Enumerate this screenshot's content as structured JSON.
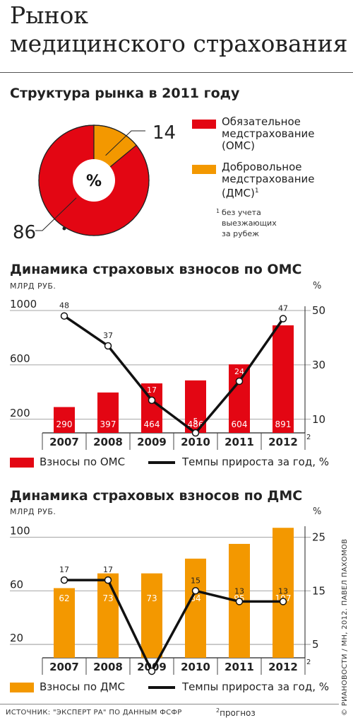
{
  "header": {
    "title_line1": "Рынок",
    "title_line2": "медицинского страхования"
  },
  "colors": {
    "red": "#e30613",
    "orange": "#f39800",
    "line": "#111111",
    "grid": "#888888"
  },
  "structure": {
    "title": "Структура рынка в 2011 году",
    "center_label": "%",
    "legend": [
      {
        "lines": [
          "Обязательное",
          "медстрахование",
          "(ОМС)"
        ]
      },
      {
        "lines": [
          "Добровольное",
          "медстрахование",
          "(ДМС)"
        ],
        "footnote_mark": "1"
      }
    ],
    "footnote": {
      "mark": "1",
      "lines": [
        "без учета",
        "выезжающих",
        "за рубеж"
      ]
    }
  },
  "oms": {
    "title": "Динамика страховых взносов по ОМС",
    "unit_left": "МЛРД РУБ.",
    "unit_right": "%",
    "legend_bars": "Взносы по ОМС",
    "legend_line": "Темпы прироста за год, %",
    "forecast_mark": "2"
  },
  "dms": {
    "title": "Динамика страховых взносов по ДМС",
    "unit_left": "МЛРД РУБ.",
    "unit_right": "%",
    "legend_bars": "Взносы по ДМС",
    "legend_line": "Темпы прироста за год, %",
    "forecast_mark": "2"
  },
  "footer": {
    "source": "ИСТОЧНИК: \"ЭКСПЕРТ РА\" ПО ДАННЫМ ФСФР",
    "forecast_mark": "2",
    "forecast_note": "прогноз",
    "credit": "© РИАНОВОСТИ / МН, 2012. ПАВЕЛ ПАХОМОВ"
  },
  "chart_data": [
    {
      "type": "pie",
      "title": "Структура рынка в 2011 году",
      "categories": [
        "Обязательное медстрахование (ОМС)",
        "Добровольное медстрахование (ДМС)"
      ],
      "values": [
        86,
        14
      ],
      "colors": [
        "#e30613",
        "#f39800"
      ],
      "center_label": "%"
    },
    {
      "type": "bar",
      "title": "Динамика страховых взносов по ОМС",
      "categories": [
        "2007",
        "2008",
        "2009",
        "2010",
        "2011",
        "2012"
      ],
      "series": [
        {
          "name": "Взносы по ОМС",
          "values": [
            290,
            397,
            464,
            486,
            604,
            891
          ],
          "axis": "left",
          "color": "#e30613"
        },
        {
          "name": "Темпы прироста за год, %",
          "values": [
            48,
            37,
            17,
            5,
            24,
            47
          ],
          "axis": "right",
          "kind": "line",
          "color": "#111111"
        }
      ],
      "ylim_left": [
        100,
        1000
      ],
      "yticks_left": [
        200,
        600,
        1000
      ],
      "ylim_right": [
        5,
        50
      ],
      "yticks_right": [
        10,
        30,
        50
      ],
      "ylabel_left": "МЛРД РУБ.",
      "ylabel_right": "%",
      "grid": true
    },
    {
      "type": "bar",
      "title": "Динамика страховых взносов по ДМС",
      "categories": [
        "2007",
        "2008",
        "2009",
        "2010",
        "2011",
        "2012"
      ],
      "series": [
        {
          "name": "Взносы по ДМС",
          "values": [
            62,
            73,
            73,
            84,
            95,
            107
          ],
          "axis": "left",
          "color": "#f39800"
        },
        {
          "name": "Темпы прироста за год, %",
          "values": [
            17,
            17,
            0,
            15,
            13,
            13
          ],
          "axis": "right",
          "kind": "line",
          "color": "#111111"
        }
      ],
      "ylim_left": [
        10,
        105
      ],
      "yticks_left": [
        20,
        60,
        100
      ],
      "ylim_right": [
        2.5,
        26.25
      ],
      "yticks_right": [
        5,
        15,
        25
      ],
      "ylabel_left": "МЛРД РУБ.",
      "ylabel_right": "%",
      "grid": true
    }
  ]
}
